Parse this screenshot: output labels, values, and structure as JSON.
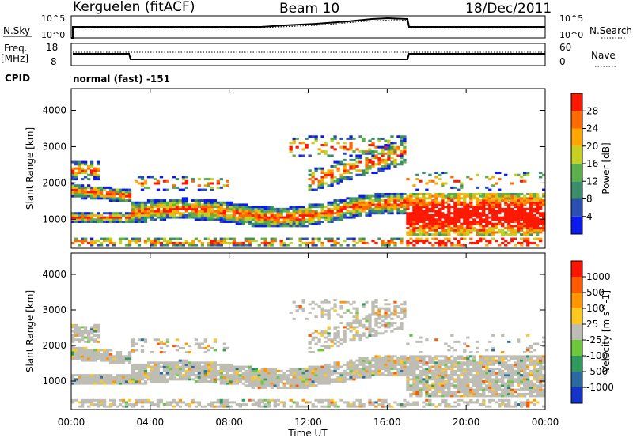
{
  "header": {
    "station": "Kerguelen (fitACF)",
    "beam": "Beam 10",
    "date": "18/Dec/2011"
  },
  "top_panels": {
    "nsky_label": "N.Sky",
    "nsearch_label": "N.Search",
    "nsky_ticks": [
      "10^5",
      "10^0"
    ],
    "nsearch_ticks": [
      "10^5",
      "10^0"
    ],
    "freq_label": "Freq.",
    "freq_unit": "[MHz]",
    "freq_ticks": [
      "18",
      "8"
    ],
    "nave_label": "Nave",
    "nave_ticks": [
      "60",
      "0"
    ],
    "cpid_label": "CPID",
    "cpid_value": "normal (fast) -151"
  },
  "chart_data": [
    {
      "type": "heatmap",
      "name": "power-panel",
      "ylabel": "Slant Range [km]",
      "yticks": [
        "1000",
        "2000",
        "3000",
        "4000"
      ],
      "ylim": [
        200,
        4600
      ],
      "xlim": [
        0,
        24
      ],
      "colorbar": {
        "label": "Power [dB]",
        "ticks": [
          "4",
          "8",
          "12",
          "16",
          "20",
          "24",
          "28"
        ],
        "colors": [
          "#0a1aee",
          "#2a4fb4",
          "#3a8f6a",
          "#5ab04a",
          "#c6d020",
          "#ffa600",
          "#ff6a00",
          "#ff1800"
        ]
      }
    },
    {
      "type": "heatmap",
      "name": "velocity-panel",
      "ylabel": "Slant Range [km]",
      "yticks": [
        "1000",
        "2000",
        "3000",
        "4000"
      ],
      "ylim": [
        200,
        4600
      ],
      "xlim": [
        0,
        24
      ],
      "xlabel": "Time UT",
      "xticks": [
        "00:00",
        "04:00",
        "08:00",
        "12:00",
        "16:00",
        "20:00",
        "00:00"
      ],
      "colorbar": {
        "label": "Velocity [m s^-1]",
        "ticks": [
          "1000",
          "500",
          "100",
          "25",
          "-25",
          "-100",
          "-500",
          "-1000"
        ],
        "colors": [
          "#1432cc",
          "#2a6aa0",
          "#2e9a5c",
          "#6ac83a",
          "#bebdb4",
          "#ffc81e",
          "#ff9600",
          "#ff5a00",
          "#ff1400"
        ]
      }
    }
  ]
}
